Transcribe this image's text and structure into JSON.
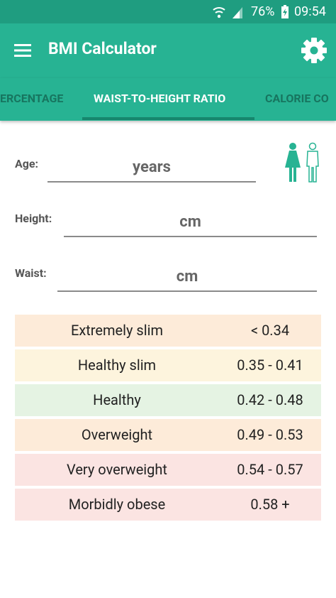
{
  "status_bar": {
    "battery": "76%",
    "time": "09:54"
  },
  "app_bar": {
    "title": "BMI Calculator"
  },
  "tabs": [
    "ERCENTAGE",
    "WAIST-TO-HEIGHT RATIO",
    "CALORIE CO"
  ],
  "form": {
    "age": {
      "label": "Age:",
      "placeholder": "years"
    },
    "height": {
      "label": "Height:",
      "placeholder": "cm"
    },
    "waist": {
      "label": "Waist:",
      "placeholder": "cm"
    }
  },
  "table": {
    "rows": [
      [
        "Extremely slim",
        "< 0.34"
      ],
      [
        "Healthy slim",
        "0.35 - 0.41"
      ],
      [
        "Healthy",
        "0.42 - 0.48"
      ],
      [
        "Overweight",
        "0.49 - 0.53"
      ],
      [
        "Very overweight",
        "0.54 - 0.57"
      ],
      [
        "Morbidly obese",
        "0.58 +"
      ]
    ]
  }
}
